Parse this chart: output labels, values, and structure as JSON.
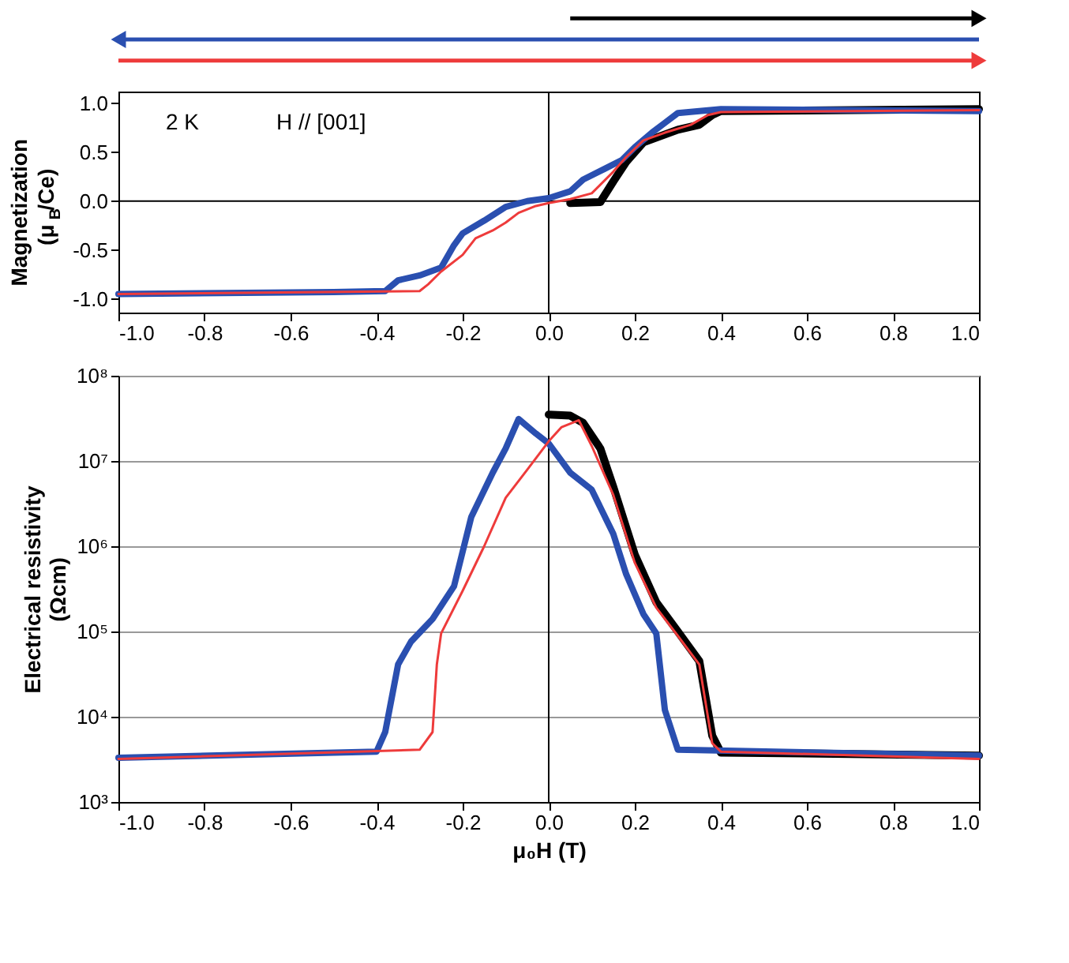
{
  "chart_data": [
    {
      "type": "line",
      "ylabel": "Magnetization\n(μ$_{B}$/Ce)",
      "xlim": [
        -1.0,
        1.0
      ],
      "xticks": [
        {
          "value": -1.0,
          "label": "-1.0"
        },
        {
          "value": -0.8,
          "label": "-0.8"
        },
        {
          "value": -0.6,
          "label": "-0.6"
        },
        {
          "value": -0.4,
          "label": "-0.4"
        },
        {
          "value": -0.2,
          "label": "-0.2"
        },
        {
          "value": 0.0,
          "label": "0.0"
        },
        {
          "value": 0.2,
          "label": "0.2"
        },
        {
          "value": 0.4,
          "label": "0.4"
        },
        {
          "value": 0.6,
          "label": "0.6"
        },
        {
          "value": 0.8,
          "label": "0.8"
        },
        {
          "value": 1.0,
          "label": "1.0"
        }
      ],
      "ylim": [
        -1.14,
        1.12
      ],
      "yticks": [
        {
          "value": -1.0,
          "label": "-1.0"
        },
        {
          "value": -0.5,
          "label": "-0.5"
        },
        {
          "value": 0.0,
          "label": "0.0"
        },
        {
          "value": 0.5,
          "label": "0.5"
        },
        {
          "value": 1.0,
          "label": "1.0"
        }
      ],
      "grid": false,
      "marker": "none",
      "line_style": "solid",
      "annotations": [
        "2 K",
        "H // [001]"
      ],
      "ref_lines": [
        {
          "axis": "x",
          "value": 0,
          "label": null,
          "color": "#000000"
        },
        {
          "axis": "y",
          "value": 0,
          "label": null,
          "color": "#000000"
        }
      ],
      "series": [
        {
          "color": "#000000",
          "x": [
            0.05,
            0.12,
            0.15,
            0.18,
            0.22,
            0.3,
            0.35,
            0.38,
            0.4,
            1.0
          ],
          "values": [
            -0.02,
            -0.01,
            0.2,
            0.4,
            0.6,
            0.73,
            0.78,
            0.88,
            0.92,
            0.94
          ]
        },
        {
          "color": "#2a4fb0",
          "x": [
            1.0,
            0.4,
            0.3,
            0.27,
            0.24,
            0.2,
            0.17,
            0.13,
            0.08,
            0.05,
            0.0,
            -0.05,
            -0.1,
            -0.15,
            -0.2,
            -0.22,
            -0.25,
            -0.3,
            -0.35,
            -0.38,
            -0.5,
            -1.0
          ],
          "values": [
            0.92,
            0.94,
            0.9,
            0.8,
            0.7,
            0.55,
            0.42,
            0.33,
            0.22,
            0.1,
            0.03,
            0.0,
            -0.06,
            -0.2,
            -0.33,
            -0.45,
            -0.68,
            -0.76,
            -0.81,
            -0.92,
            -0.93,
            -0.95
          ]
        },
        {
          "color": "#ee3b3b",
          "x": [
            -1.0,
            -0.3,
            -0.28,
            -0.25,
            -0.2,
            -0.17,
            -0.13,
            -0.1,
            -0.07,
            -0.03,
            0.0,
            0.05,
            0.1,
            0.15,
            0.18,
            0.22,
            0.27,
            0.33,
            0.37,
            0.4,
            1.0
          ],
          "values": [
            -0.95,
            -0.92,
            -0.85,
            -0.72,
            -0.55,
            -0.38,
            -0.3,
            -0.22,
            -0.12,
            -0.05,
            -0.02,
            0.02,
            0.08,
            0.3,
            0.45,
            0.62,
            0.7,
            0.78,
            0.88,
            0.91,
            0.93
          ]
        }
      ]
    },
    {
      "type": "line",
      "xlabel": "μ₀H (T)",
      "ylabel": "Electrical resistivity\n(Ωcm)",
      "log": "y",
      "xlim": [
        -1.0,
        1.0
      ],
      "xticks": [
        {
          "value": -1.0,
          "label": "-1.0"
        },
        {
          "value": -0.8,
          "label": "-0.8"
        },
        {
          "value": -0.6,
          "label": "-0.6"
        },
        {
          "value": -0.4,
          "label": "-0.4"
        },
        {
          "value": -0.2,
          "label": "-0.2"
        },
        {
          "value": 0.0,
          "label": "0.0"
        },
        {
          "value": 0.2,
          "label": "0.2"
        },
        {
          "value": 0.4,
          "label": "0.4"
        },
        {
          "value": 0.6,
          "label": "0.6"
        },
        {
          "value": 0.8,
          "label": "0.8"
        },
        {
          "value": 1.0,
          "label": "1.0"
        }
      ],
      "ylim": [
        1000,
        100000000
      ],
      "yticks": [
        {
          "value": 1000,
          "label": "10³"
        },
        {
          "value": 10000,
          "label": "10⁴"
        },
        {
          "value": 100000,
          "label": "10⁵"
        },
        {
          "value": 1000000,
          "label": "10⁶"
        },
        {
          "value": 10000000,
          "label": "10⁷"
        },
        {
          "value": 100000000,
          "label": "10⁸"
        }
      ],
      "grid": "y",
      "marker": "none",
      "line_style": "solid",
      "ref_lines": [
        {
          "axis": "x",
          "value": 0,
          "label": null,
          "color": "#000000"
        }
      ],
      "series": [
        {
          "color": "#000000",
          "x": [
            0.0,
            0.05,
            0.08,
            0.12,
            0.15,
            0.2,
            0.25,
            0.3,
            0.35,
            0.38,
            0.4,
            1.0
          ],
          "values": [
            35000000,
            34000000,
            28000000,
            14000000,
            5000000,
            800000,
            220000,
            100000,
            45000,
            6000,
            3800,
            3500
          ]
        },
        {
          "color": "#2a4fb0",
          "x": [
            1.0,
            0.3,
            0.27,
            0.25,
            0.22,
            0.18,
            0.15,
            0.1,
            0.05,
            0.0,
            -0.03,
            -0.07,
            -0.1,
            -0.13,
            -0.18,
            -0.22,
            -0.27,
            -0.32,
            -0.35,
            -0.38,
            -0.4,
            -1.0
          ],
          "values": [
            3500,
            4100,
            12000,
            95000,
            160000,
            470000,
            1400000,
            4600000,
            7300000,
            16000000,
            21000000,
            31000000,
            14000000,
            7300000,
            2200000,
            340000,
            140000,
            76000,
            41000,
            6600,
            3900,
            3300
          ]
        },
        {
          "color": "#ee3b3b",
          "x": [
            -1.0,
            -0.3,
            -0.27,
            -0.26,
            -0.25,
            -0.2,
            -0.15,
            -0.1,
            -0.05,
            0.0,
            0.03,
            0.07,
            0.1,
            0.15,
            0.2,
            0.25,
            0.3,
            0.35,
            0.38,
            0.4,
            1.0
          ],
          "values": [
            3200,
            4100,
            6600,
            41000,
            95000,
            300000,
            1000000,
            3700000,
            7900000,
            17000000,
            25000000,
            30000000,
            15000000,
            4000000,
            640000,
            190000,
            89000,
            41000,
            4900,
            3900,
            3200
          ]
        }
      ]
    }
  ]
}
